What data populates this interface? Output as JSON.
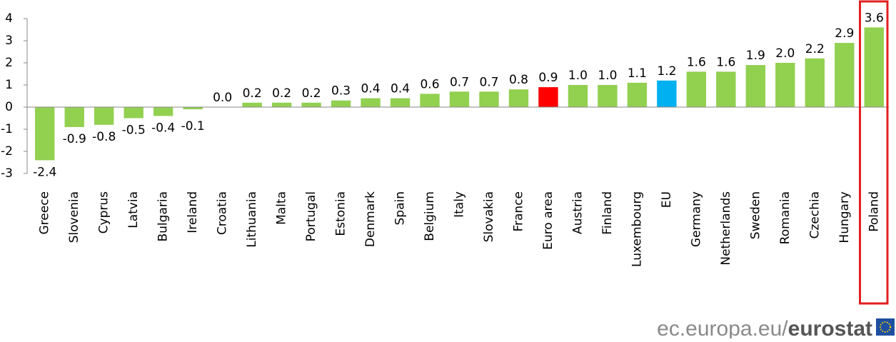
{
  "chart_data": {
    "type": "bar",
    "categories": [
      "Greece",
      "Slovenia",
      "Cyprus",
      "Latvia",
      "Bulgaria",
      "Ireland",
      "Croatia",
      "Lithuania",
      "Malta",
      "Portugal",
      "Estonia",
      "Denmark",
      "Spain",
      "Belgium",
      "Italy",
      "Slovakia",
      "France",
      "Euro area",
      "Austria",
      "Finland",
      "Luxembourg",
      "EU",
      "Germany",
      "Netherlands",
      "Sweden",
      "Romania",
      "Czechia",
      "Hungary",
      "Poland"
    ],
    "values": [
      -2.4,
      -0.9,
      -0.8,
      -0.5,
      -0.4,
      -0.1,
      0,
      0.2,
      0.2,
      0.2,
      0.3,
      0.4,
      0.4,
      0.6,
      0.7,
      0.7,
      0.8,
      0.9,
      1,
      1,
      1.1,
      1.2,
      1.6,
      1.6,
      1.9,
      2,
      2.2,
      2.9,
      3.6
    ],
    "value_labels": [
      "-2.4",
      "-0.9",
      "-0.8",
      "-0.5",
      "-0.4",
      "-0.1",
      "0.0",
      "0.2",
      "0.2",
      "0.2",
      "0.3",
      "0.4",
      "0.4",
      "0.6",
      "0.7",
      "0.7",
      "0.8",
      "0.9",
      "1.0",
      "1.0",
      "1.1",
      "1.2",
      "1.6",
      "1.6",
      "1.9",
      "2.0",
      "2.2",
      "2.9",
      "3.6"
    ],
    "colors": [
      "#92d050",
      "#92d050",
      "#92d050",
      "#92d050",
      "#92d050",
      "#92d050",
      "#92d050",
      "#92d050",
      "#92d050",
      "#92d050",
      "#92d050",
      "#92d050",
      "#92d050",
      "#92d050",
      "#92d050",
      "#92d050",
      "#92d050",
      "#ff0000",
      "#92d050",
      "#92d050",
      "#92d050",
      "#00b0f0",
      "#92d050",
      "#92d050",
      "#92d050",
      "#92d050",
      "#92d050",
      "#92d050",
      "#92d050"
    ],
    "ylim": [
      -3,
      4
    ],
    "yticks": [
      -3,
      -2,
      -1,
      0,
      1,
      2,
      3,
      4
    ],
    "highlight": {
      "category": 28,
      "color": "#e0201f"
    }
  },
  "footer": {
    "site": "ec.europa.eu/",
    "brand": "eurostat"
  }
}
